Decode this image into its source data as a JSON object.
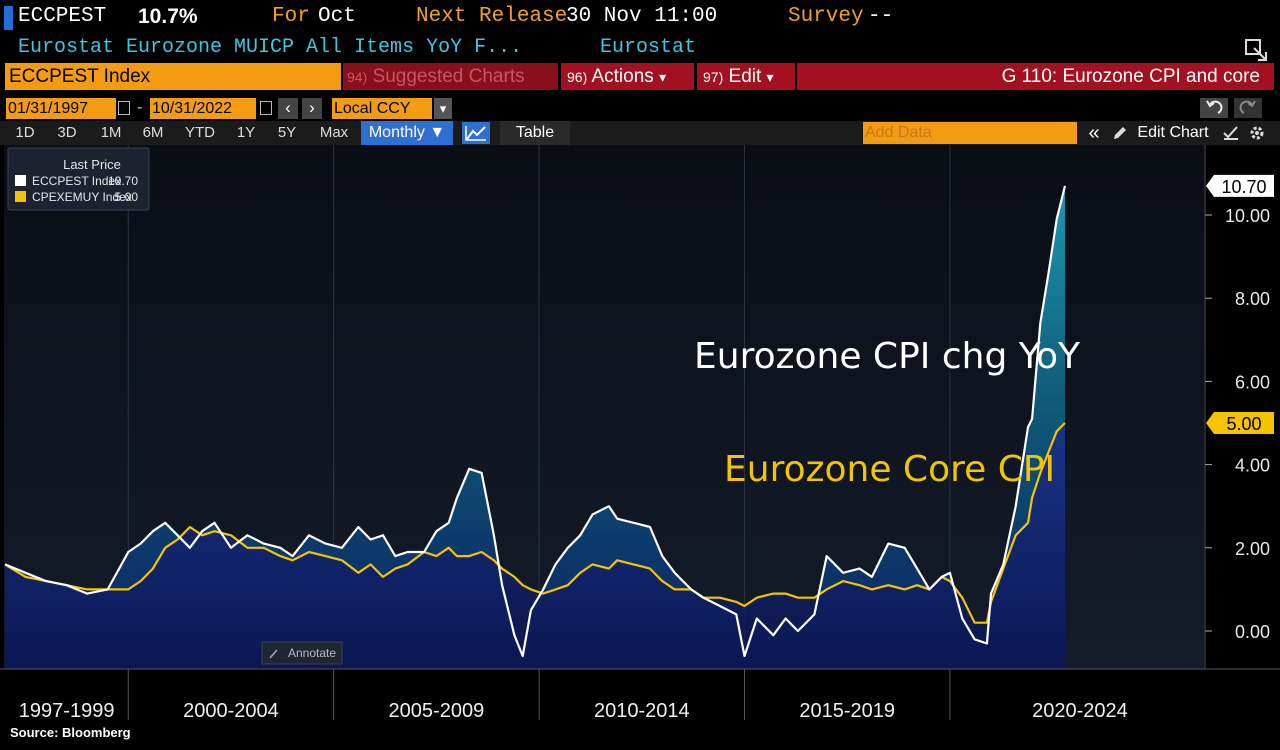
{
  "header": {
    "ticker": "ECCPEST",
    "value": "10.7%",
    "for_label": "For",
    "for_value": "Oct",
    "next_release_label": "Next Release",
    "next_release_value": "30 Nov 11:00",
    "survey_label": "Survey",
    "survey_value": "--",
    "description": "Eurostat Eurozone MUICP All Items YoY F...",
    "source": "Eurostat"
  },
  "toolbar": {
    "security": "ECCPEST Index",
    "suggested": {
      "num": "94)",
      "label": "Suggested Charts"
    },
    "actions": {
      "num": "96)",
      "label": "Actions"
    },
    "edit": {
      "num": "97)",
      "label": "Edit"
    },
    "chart_title": "G 110: Eurozone CPI and core",
    "start_date": "01/31/1997",
    "sep": "-",
    "end_date": "10/31/2022",
    "currency": "Local CCY",
    "periods": [
      "1D",
      "3D",
      "1M",
      "6M",
      "YTD",
      "1Y",
      "5Y",
      "Max"
    ],
    "frequency": "Monthly ▼",
    "table_label": "Table",
    "add_data_placeholder": "Add Data",
    "edit_chart": "Edit Chart",
    "prev_glyph": "‹",
    "next_glyph": "›",
    "collapse_glyph": "«",
    "dropdown_glyph": "▾",
    "check_glyph": "✓"
  },
  "legend": {
    "title": "Last Price",
    "items": [
      {
        "name": "ECCPEST Index",
        "value": "10.70",
        "color": "#ffffff"
      },
      {
        "name": "CPEXEMUY Index",
        "value": "5.00",
        "color": "#f5c400"
      }
    ]
  },
  "annotate_label": "Annotate",
  "footer": "Source: Bloomberg",
  "chart_data": {
    "type": "line",
    "title": "G 110: Eurozone CPI and core",
    "xlabel": "",
    "ylabel": "",
    "ylim": [
      -1,
      12
    ],
    "xlim": [
      1997.0,
      2025.6
    ],
    "yticks": [
      "0.00",
      "2.00",
      "4.00",
      "6.00",
      "8.00",
      "10.00"
    ],
    "xbands": [
      {
        "label": "1997-1999",
        "start": 1997.0,
        "end": 2000.0
      },
      {
        "label": "2000-2004",
        "start": 2000.0,
        "end": 2005.0
      },
      {
        "label": "2005-2009",
        "start": 2005.0,
        "end": 2010.0
      },
      {
        "label": "2010-2014",
        "start": 2010.0,
        "end": 2015.0
      },
      {
        "label": "2015-2019",
        "start": 2015.0,
        "end": 2020.0
      },
      {
        "label": "2020-2024",
        "start": 2020.0,
        "end": 2025.6
      }
    ],
    "series": [
      {
        "name": "ECCPEST Index",
        "label": "Eurozone CPI chg YoY",
        "color": "#ffffff",
        "last": "10.70",
        "x": [
          1997.0,
          1997.5,
          1998.0,
          1998.5,
          1999.0,
          1999.5,
          2000.0,
          2000.3,
          2000.6,
          2000.9,
          2001.2,
          2001.5,
          2001.8,
          2002.1,
          2002.5,
          2002.9,
          2003.3,
          2003.7,
          2004.0,
          2004.4,
          2004.8,
          2005.2,
          2005.6,
          2005.9,
          2006.2,
          2006.5,
          2006.8,
          2007.2,
          2007.5,
          2007.8,
          2008.0,
          2008.3,
          2008.6,
          2008.9,
          2009.1,
          2009.4,
          2009.6,
          2009.8,
          2010.1,
          2010.4,
          2010.7,
          2011.0,
          2011.3,
          2011.7,
          2011.9,
          2012.3,
          2012.7,
          2013.0,
          2013.3,
          2013.7,
          2014.0,
          2014.4,
          2014.8,
          2015.0,
          2015.3,
          2015.7,
          2016.0,
          2016.3,
          2016.7,
          2017.0,
          2017.4,
          2017.8,
          2018.1,
          2018.5,
          2018.9,
          2019.2,
          2019.5,
          2019.8,
          2020.0,
          2020.3,
          2020.6,
          2020.9,
          2021.0,
          2021.3,
          2021.6,
          2021.9,
          2022.0,
          2022.2,
          2022.4,
          2022.6,
          2022.8
        ],
        "values": [
          1.6,
          1.4,
          1.2,
          1.1,
          0.9,
          1.0,
          1.9,
          2.1,
          2.4,
          2.6,
          2.3,
          2.0,
          2.4,
          2.6,
          2.0,
          2.3,
          2.1,
          2.0,
          1.8,
          2.3,
          2.1,
          2.0,
          2.5,
          2.2,
          2.3,
          1.8,
          1.9,
          1.9,
          2.4,
          2.6,
          3.2,
          3.9,
          3.8,
          2.3,
          1.1,
          -0.1,
          -0.6,
          0.5,
          1.0,
          1.6,
          2.0,
          2.3,
          2.8,
          3.0,
          2.7,
          2.6,
          2.5,
          1.8,
          1.4,
          1.0,
          0.8,
          0.6,
          0.4,
          -0.6,
          0.3,
          -0.1,
          0.3,
          0.0,
          0.4,
          1.8,
          1.4,
          1.5,
          1.3,
          2.1,
          2.0,
          1.5,
          1.0,
          1.3,
          1.4,
          0.3,
          -0.2,
          -0.3,
          0.9,
          1.6,
          3.0,
          4.9,
          5.1,
          7.4,
          8.6,
          9.9,
          10.7
        ]
      },
      {
        "name": "CPEXEMUY Index",
        "label": "Eurozone Core CPI",
        "color": "#f5c400",
        "last": "5.00",
        "x": [
          1997.0,
          1997.5,
          1998.0,
          1998.5,
          1999.0,
          1999.5,
          2000.0,
          2000.3,
          2000.6,
          2000.9,
          2001.2,
          2001.5,
          2001.8,
          2002.1,
          2002.5,
          2002.9,
          2003.3,
          2003.7,
          2004.0,
          2004.4,
          2004.8,
          2005.2,
          2005.6,
          2005.9,
          2006.2,
          2006.5,
          2006.8,
          2007.2,
          2007.5,
          2007.8,
          2008.0,
          2008.3,
          2008.6,
          2008.9,
          2009.1,
          2009.4,
          2009.6,
          2009.8,
          2010.1,
          2010.4,
          2010.7,
          2011.0,
          2011.3,
          2011.7,
          2011.9,
          2012.3,
          2012.7,
          2013.0,
          2013.3,
          2013.7,
          2014.0,
          2014.4,
          2014.8,
          2015.0,
          2015.3,
          2015.7,
          2016.0,
          2016.3,
          2016.7,
          2017.0,
          2017.4,
          2017.8,
          2018.1,
          2018.5,
          2018.9,
          2019.2,
          2019.5,
          2019.8,
          2020.0,
          2020.3,
          2020.6,
          2020.9,
          2021.0,
          2021.3,
          2021.6,
          2021.9,
          2022.0,
          2022.2,
          2022.4,
          2022.6,
          2022.8
        ],
        "values": [
          1.6,
          1.3,
          1.2,
          1.1,
          1.0,
          1.0,
          1.0,
          1.2,
          1.5,
          2.0,
          2.2,
          2.5,
          2.3,
          2.4,
          2.3,
          2.0,
          2.0,
          1.8,
          1.7,
          1.9,
          1.8,
          1.7,
          1.4,
          1.6,
          1.3,
          1.5,
          1.6,
          1.9,
          1.8,
          2.0,
          1.8,
          1.8,
          1.9,
          1.7,
          1.5,
          1.3,
          1.1,
          1.0,
          0.9,
          1.0,
          1.1,
          1.4,
          1.6,
          1.5,
          1.7,
          1.6,
          1.5,
          1.2,
          1.0,
          1.0,
          0.8,
          0.8,
          0.7,
          0.6,
          0.8,
          0.9,
          0.9,
          0.8,
          0.8,
          1.0,
          1.2,
          1.1,
          1.0,
          1.1,
          1.0,
          1.1,
          1.0,
          1.3,
          1.2,
          0.8,
          0.2,
          0.2,
          0.7,
          1.5,
          2.3,
          2.6,
          3.2,
          3.8,
          4.3,
          4.8,
          5.0
        ]
      }
    ],
    "annotations": [
      "Eurozone CPI chg YoY",
      "Eurozone Core CPI"
    ]
  }
}
